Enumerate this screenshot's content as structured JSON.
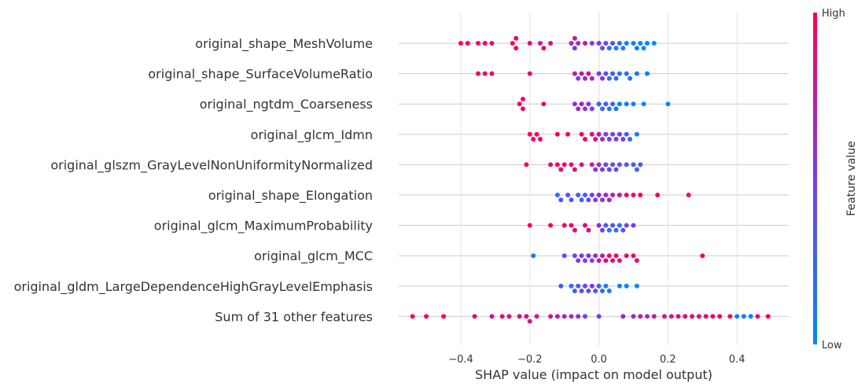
{
  "chart_data": {
    "type": "scatter",
    "subtype": "beeswarm",
    "title": "",
    "xlabel": "SHAP value (impact on model output)",
    "xlim": [
      -0.58,
      0.55
    ],
    "xticks": [
      -0.4,
      -0.2,
      0.0,
      0.2,
      0.4
    ],
    "xtick_labels": [
      "−0.4",
      "−0.2",
      "0.0",
      "0.2",
      "0.4"
    ],
    "grid": "horizontal",
    "legend": {
      "type": "colorbar",
      "position": "right",
      "title": "Feature value",
      "high_label": "High",
      "low_label": "Low",
      "low_color": "#008afb",
      "mid_color": "#7c3aeb",
      "high_color": "#ff0052"
    },
    "features": [
      {
        "name": "original_shape_MeshVolume",
        "points": [
          [
            -0.4,
            1.0
          ],
          [
            -0.38,
            0.95
          ],
          [
            -0.35,
            1.0
          ],
          [
            -0.33,
            1.0
          ],
          [
            -0.31,
            0.95
          ],
          [
            -0.25,
            1.0
          ],
          [
            -0.24,
            0.9
          ],
          [
            -0.24,
            0.95
          ],
          [
            -0.2,
            0.9
          ],
          [
            -0.17,
            0.75
          ],
          [
            -0.16,
            0.9
          ],
          [
            -0.14,
            0.85
          ],
          [
            -0.08,
            0.6
          ],
          [
            -0.07,
            0.55
          ],
          [
            -0.07,
            0.8
          ],
          [
            -0.06,
            0.65
          ],
          [
            -0.04,
            0.8
          ],
          [
            -0.02,
            0.5
          ],
          [
            0.0,
            0.5
          ],
          [
            0.01,
            0.3
          ],
          [
            0.02,
            0.4
          ],
          [
            0.03,
            0.2
          ],
          [
            0.04,
            0.3
          ],
          [
            0.05,
            0.1
          ],
          [
            0.06,
            0.2
          ],
          [
            0.07,
            0.1
          ],
          [
            0.08,
            0.05
          ],
          [
            0.1,
            0.05
          ],
          [
            0.11,
            0.05
          ],
          [
            0.12,
            0.0
          ],
          [
            0.13,
            0.0
          ],
          [
            0.14,
            0.05
          ],
          [
            0.16,
            0.0
          ]
        ]
      },
      {
        "name": "original_shape_SurfaceVolumeRatio",
        "points": [
          [
            -0.35,
            0.95
          ],
          [
            -0.33,
            0.95
          ],
          [
            -0.31,
            1.0
          ],
          [
            -0.2,
            0.9
          ],
          [
            -0.07,
            0.7
          ],
          [
            -0.06,
            0.5
          ],
          [
            -0.05,
            0.8
          ],
          [
            -0.04,
            0.6
          ],
          [
            -0.03,
            0.75
          ],
          [
            -0.02,
            0.7
          ],
          [
            0.0,
            0.5
          ],
          [
            0.01,
            0.55
          ],
          [
            0.02,
            0.3
          ],
          [
            0.03,
            0.2
          ],
          [
            0.04,
            0.3
          ],
          [
            0.05,
            0.2
          ],
          [
            0.06,
            0.1
          ],
          [
            0.08,
            0.2
          ],
          [
            0.09,
            0.1
          ],
          [
            0.11,
            0.05
          ],
          [
            0.14,
            0.05
          ]
        ]
      },
      {
        "name": "original_ngtdm_Coarseness",
        "points": [
          [
            -0.23,
            0.95
          ],
          [
            -0.22,
            0.9
          ],
          [
            -0.22,
            1.0
          ],
          [
            -0.16,
            0.9
          ],
          [
            -0.07,
            0.55
          ],
          [
            -0.06,
            0.65
          ],
          [
            -0.05,
            0.75
          ],
          [
            -0.04,
            0.6
          ],
          [
            -0.03,
            0.5
          ],
          [
            -0.02,
            0.5
          ],
          [
            0.0,
            0.3
          ],
          [
            0.01,
            0.2
          ],
          [
            0.02,
            0.25
          ],
          [
            0.03,
            0.1
          ],
          [
            0.04,
            0.2
          ],
          [
            0.05,
            0.1
          ],
          [
            0.06,
            0.05
          ],
          [
            0.08,
            0.05
          ],
          [
            0.1,
            0.05
          ],
          [
            0.13,
            0.0
          ],
          [
            0.2,
            0.0
          ]
        ]
      },
      {
        "name": "original_glcm_Idmn",
        "points": [
          [
            -0.2,
            1.0
          ],
          [
            -0.19,
            0.95
          ],
          [
            -0.18,
            1.0
          ],
          [
            -0.17,
            0.95
          ],
          [
            -0.12,
            1.0
          ],
          [
            -0.09,
            0.95
          ],
          [
            -0.05,
            0.9
          ],
          [
            -0.04,
            0.95
          ],
          [
            -0.02,
            0.9
          ],
          [
            -0.01,
            0.85
          ],
          [
            0.0,
            0.7
          ],
          [
            0.01,
            0.6
          ],
          [
            0.02,
            0.5
          ],
          [
            0.03,
            0.5
          ],
          [
            0.04,
            0.4
          ],
          [
            0.05,
            0.55
          ],
          [
            0.06,
            0.5
          ],
          [
            0.07,
            0.45
          ],
          [
            0.08,
            0.3
          ],
          [
            0.09,
            0.2
          ],
          [
            0.11,
            0.05
          ]
        ]
      },
      {
        "name": "original_glszm_GrayLevelNonUniformityNormalized",
        "points": [
          [
            -0.21,
            0.95
          ],
          [
            -0.14,
            0.9
          ],
          [
            -0.12,
            1.0
          ],
          [
            -0.11,
            0.9
          ],
          [
            -0.1,
            0.95
          ],
          [
            -0.08,
            0.9
          ],
          [
            -0.07,
            0.85
          ],
          [
            -0.05,
            0.8
          ],
          [
            -0.02,
            0.75
          ],
          [
            -0.01,
            0.6
          ],
          [
            0.0,
            0.55
          ],
          [
            0.01,
            0.5
          ],
          [
            0.02,
            0.45
          ],
          [
            0.03,
            0.4
          ],
          [
            0.04,
            0.35
          ],
          [
            0.05,
            0.4
          ],
          [
            0.06,
            0.35
          ],
          [
            0.08,
            0.3
          ],
          [
            0.1,
            0.3
          ],
          [
            0.11,
            0.25
          ],
          [
            0.12,
            0.3
          ]
        ]
      },
      {
        "name": "original_shape_Elongation",
        "points": [
          [
            -0.12,
            0.2
          ],
          [
            -0.11,
            0.35
          ],
          [
            -0.09,
            0.3
          ],
          [
            -0.08,
            0.3
          ],
          [
            -0.06,
            0.25
          ],
          [
            -0.05,
            0.2
          ],
          [
            -0.04,
            0.3
          ],
          [
            -0.03,
            0.4
          ],
          [
            -0.02,
            0.45
          ],
          [
            -0.01,
            0.5
          ],
          [
            0.0,
            0.6
          ],
          [
            0.01,
            0.55
          ],
          [
            0.02,
            0.6
          ],
          [
            0.03,
            0.65
          ],
          [
            0.04,
            0.7
          ],
          [
            0.06,
            0.8
          ],
          [
            0.08,
            0.85
          ],
          [
            0.1,
            0.9
          ],
          [
            0.12,
            0.95
          ],
          [
            0.17,
            0.95
          ],
          [
            0.26,
            1.0
          ]
        ]
      },
      {
        "name": "original_glcm_MaximumProbability",
        "points": [
          [
            -0.2,
            1.0
          ],
          [
            -0.14,
            0.95
          ],
          [
            -0.1,
            0.95
          ],
          [
            -0.08,
            0.9
          ],
          [
            -0.07,
            0.95
          ],
          [
            -0.04,
            0.9
          ],
          [
            -0.03,
            0.85
          ],
          [
            0.0,
            0.6
          ],
          [
            0.01,
            0.4
          ],
          [
            0.02,
            0.3
          ],
          [
            0.03,
            0.2
          ],
          [
            0.04,
            0.3
          ],
          [
            0.05,
            0.25
          ],
          [
            0.06,
            0.2
          ],
          [
            0.07,
            0.3
          ],
          [
            0.08,
            0.4
          ],
          [
            0.1,
            0.5
          ]
        ]
      },
      {
        "name": "original_glcm_MCC",
        "points": [
          [
            -0.19,
            0.1
          ],
          [
            -0.1,
            0.3
          ],
          [
            -0.07,
            0.4
          ],
          [
            -0.06,
            0.5
          ],
          [
            -0.05,
            0.45
          ],
          [
            -0.04,
            0.5
          ],
          [
            -0.03,
            0.55
          ],
          [
            -0.02,
            0.5
          ],
          [
            -0.01,
            0.6
          ],
          [
            0.0,
            0.75
          ],
          [
            0.01,
            0.8
          ],
          [
            0.02,
            0.85
          ],
          [
            0.03,
            0.9
          ],
          [
            0.04,
            0.9
          ],
          [
            0.05,
            0.95
          ],
          [
            0.06,
            0.9
          ],
          [
            0.08,
            0.9
          ],
          [
            0.1,
            0.95
          ],
          [
            0.11,
            0.9
          ],
          [
            0.3,
            1.0
          ]
        ]
      },
      {
        "name": "original_gldm_LargeDependenceHighGrayLevelEmphasis",
        "points": [
          [
            -0.11,
            0.3
          ],
          [
            -0.08,
            0.2
          ],
          [
            -0.07,
            0.25
          ],
          [
            -0.06,
            0.3
          ],
          [
            -0.05,
            0.4
          ],
          [
            -0.04,
            0.45
          ],
          [
            -0.03,
            0.3
          ],
          [
            -0.02,
            0.5
          ],
          [
            -0.01,
            0.4
          ],
          [
            0.0,
            0.3
          ],
          [
            0.01,
            0.2
          ],
          [
            0.02,
            0.1
          ],
          [
            0.03,
            0.15
          ],
          [
            0.06,
            0.05
          ],
          [
            0.08,
            0.05
          ],
          [
            0.11,
            0.0
          ]
        ]
      },
      {
        "name": "Sum of 31 other features",
        "points": [
          [
            -0.54,
            1.0
          ],
          [
            -0.5,
            0.95
          ],
          [
            -0.45,
            1.0
          ],
          [
            -0.36,
            0.9
          ],
          [
            -0.31,
            0.85
          ],
          [
            -0.28,
            0.9
          ],
          [
            -0.26,
            0.85
          ],
          [
            -0.23,
            0.8
          ],
          [
            -0.21,
            0.85
          ],
          [
            -0.2,
            0.8
          ],
          [
            -0.18,
            0.75
          ],
          [
            -0.14,
            0.8
          ],
          [
            -0.12,
            0.75
          ],
          [
            -0.1,
            0.7
          ],
          [
            -0.08,
            0.65
          ],
          [
            -0.06,
            0.6
          ],
          [
            -0.04,
            0.5
          ],
          [
            0.0,
            0.5
          ],
          [
            0.07,
            0.6
          ],
          [
            0.1,
            0.65
          ],
          [
            0.12,
            0.7
          ],
          [
            0.14,
            0.7
          ],
          [
            0.16,
            0.75
          ],
          [
            0.19,
            0.8
          ],
          [
            0.21,
            0.8
          ],
          [
            0.23,
            0.85
          ],
          [
            0.25,
            0.85
          ],
          [
            0.27,
            0.9
          ],
          [
            0.29,
            0.85
          ],
          [
            0.31,
            0.9
          ],
          [
            0.33,
            0.9
          ],
          [
            0.35,
            0.95
          ],
          [
            0.38,
            0.95
          ],
          [
            0.4,
            0.05
          ],
          [
            0.42,
            0.05
          ],
          [
            0.44,
            0.05
          ],
          [
            0.46,
            0.9
          ],
          [
            0.49,
            1.0
          ]
        ]
      }
    ]
  }
}
